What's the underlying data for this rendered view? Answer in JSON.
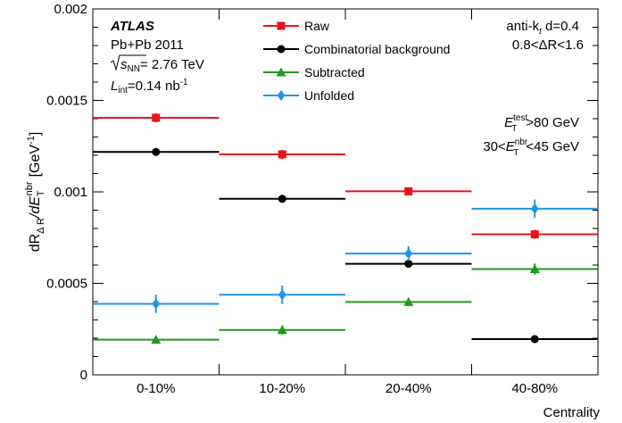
{
  "chart_data": {
    "type": "scatter",
    "categories": [
      "0-10%",
      "10-20%",
      "20-40%",
      "40-80%"
    ],
    "xlabel": "Centrality",
    "ylabel_parts": {
      "main": "dR",
      "sub1": "Δ R",
      "mid": "/dE",
      "sub2": "T",
      "sup2": "nbr",
      "unit": "[GeV",
      "unit_sup": "-1",
      "unit_close": "]"
    },
    "ylim": [
      0,
      0.002
    ],
    "yticks": [
      0,
      0.0005,
      0.001,
      0.0015,
      0.002
    ],
    "ytick_labels": [
      "0",
      "0.0005",
      "0.001",
      "0.0015",
      "0.002"
    ],
    "series": [
      {
        "name": "Raw",
        "color": "#e8141c",
        "marker": "square",
        "values": [
          0.001405,
          0.001205,
          0.001003,
          0.000768
        ],
        "errors": [
          2.5e-05,
          2.5e-05,
          2e-05,
          2.5e-05
        ]
      },
      {
        "name": "Combinatorial background",
        "color": "#000000",
        "marker": "circle",
        "values": [
          0.001218,
          0.000962,
          0.000607,
          0.000195
        ],
        "errors": [
          0,
          0,
          0,
          0
        ]
      },
      {
        "name": "Subtracted",
        "color": "#1f9a1f",
        "marker": "triangle",
        "values": [
          0.000192,
          0.000245,
          0.000398,
          0.000578
        ],
        "errors": [
          2e-05,
          2.5e-05,
          2e-05,
          3e-05
        ]
      },
      {
        "name": "Unfolded",
        "color": "#1e96e6",
        "marker": "diamond",
        "values": [
          0.000388,
          0.000438,
          0.000663,
          0.000908
        ],
        "errors": [
          5e-05,
          5e-05,
          4e-05,
          5e-05
        ]
      }
    ]
  },
  "annotations": {
    "atlas": "ATLAS",
    "system": "Pb+Pb 2011",
    "energy_sqrt": "s",
    "energy_sub": "NN",
    "energy_value": "= 2.76 TeV",
    "lumi_L": "L",
    "lumi_sub": "int",
    "lumi_value": "=0.14 nb",
    "lumi_sup": "-1",
    "jet_alg": "anti-k",
    "jet_alg_sub": "t",
    "jet_alg_value": " d=0.4",
    "dr_cut": "0.8<ΔR<1.6",
    "et_test_E": "E",
    "et_test_sup": "test",
    "et_test_sub": "T",
    "et_test_value": ">80 GeV",
    "et_nbr_low": "30<",
    "et_nbr_E": "E",
    "et_nbr_sup": "nbr",
    "et_nbr_sub": "T",
    "et_nbr_value": "<45 GeV"
  }
}
